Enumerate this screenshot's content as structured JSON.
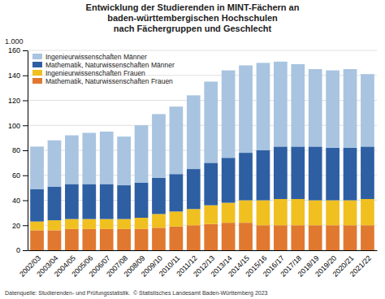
{
  "chart_data": {
    "type": "bar",
    "stacked": true,
    "title": "Entwicklung der Studierenden in MINT-Fächern an\nbaden-württembergischen Hochschulen\nnach Fächergruppen und Geschlecht",
    "y_label": "1.000",
    "annotations": [
      "Datenquelle: Studierenden- und Prüfungsstatistik.  © Statistisches Landesamt Baden-Württemberg 2023"
    ],
    "categories": [
      "2002/03",
      "2003/04",
      "2004/05",
      "2005/06",
      "2006/07",
      "2007/08",
      "2008/09",
      "2009/10",
      "2010/11",
      "2011/12",
      "2012/13",
      "2013/14",
      "2014/15",
      "2015/16",
      "2016/17",
      "2017/18",
      "2018/19",
      "2019/20",
      "2020/21",
      "2021/22"
    ],
    "series": [
      {
        "name": "Mathematik, Naturwissenschaften Frauen",
        "color": "#e07830",
        "values": [
          16,
          16,
          17,
          17,
          17,
          17,
          17,
          18,
          19,
          20,
          21,
          22,
          22,
          20,
          20,
          20,
          20,
          20,
          20,
          20
        ]
      },
      {
        "name": "Ingenieurwissenschaften Frauen",
        "color": "#f0c020",
        "values": [
          7,
          8,
          8,
          8,
          8,
          8,
          9,
          11,
          12,
          13,
          15,
          16,
          18,
          20,
          21,
          21,
          20,
          20,
          20,
          21
        ]
      },
      {
        "name": "Mathematik, Naturwissenschaften Männer",
        "color": "#2e5fa3",
        "values": [
          26,
          27,
          28,
          28,
          28,
          27,
          28,
          29,
          30,
          32,
          34,
          36,
          38,
          40,
          42,
          42,
          43,
          42,
          42,
          42
        ]
      },
      {
        "name": "Ingenieurwissenschaften Männer",
        "color": "#a8c4e0",
        "values": [
          34,
          37,
          39,
          41,
          42,
          39,
          46,
          51,
          54,
          59,
          65,
          70,
          70,
          70,
          68,
          66,
          62,
          62,
          63,
          58
        ]
      }
    ],
    "ylim": [
      0,
      160
    ],
    "yticks": [
      0,
      20,
      40,
      60,
      80,
      100,
      120,
      140,
      160
    ],
    "grid": true,
    "legend": "upper left"
  }
}
